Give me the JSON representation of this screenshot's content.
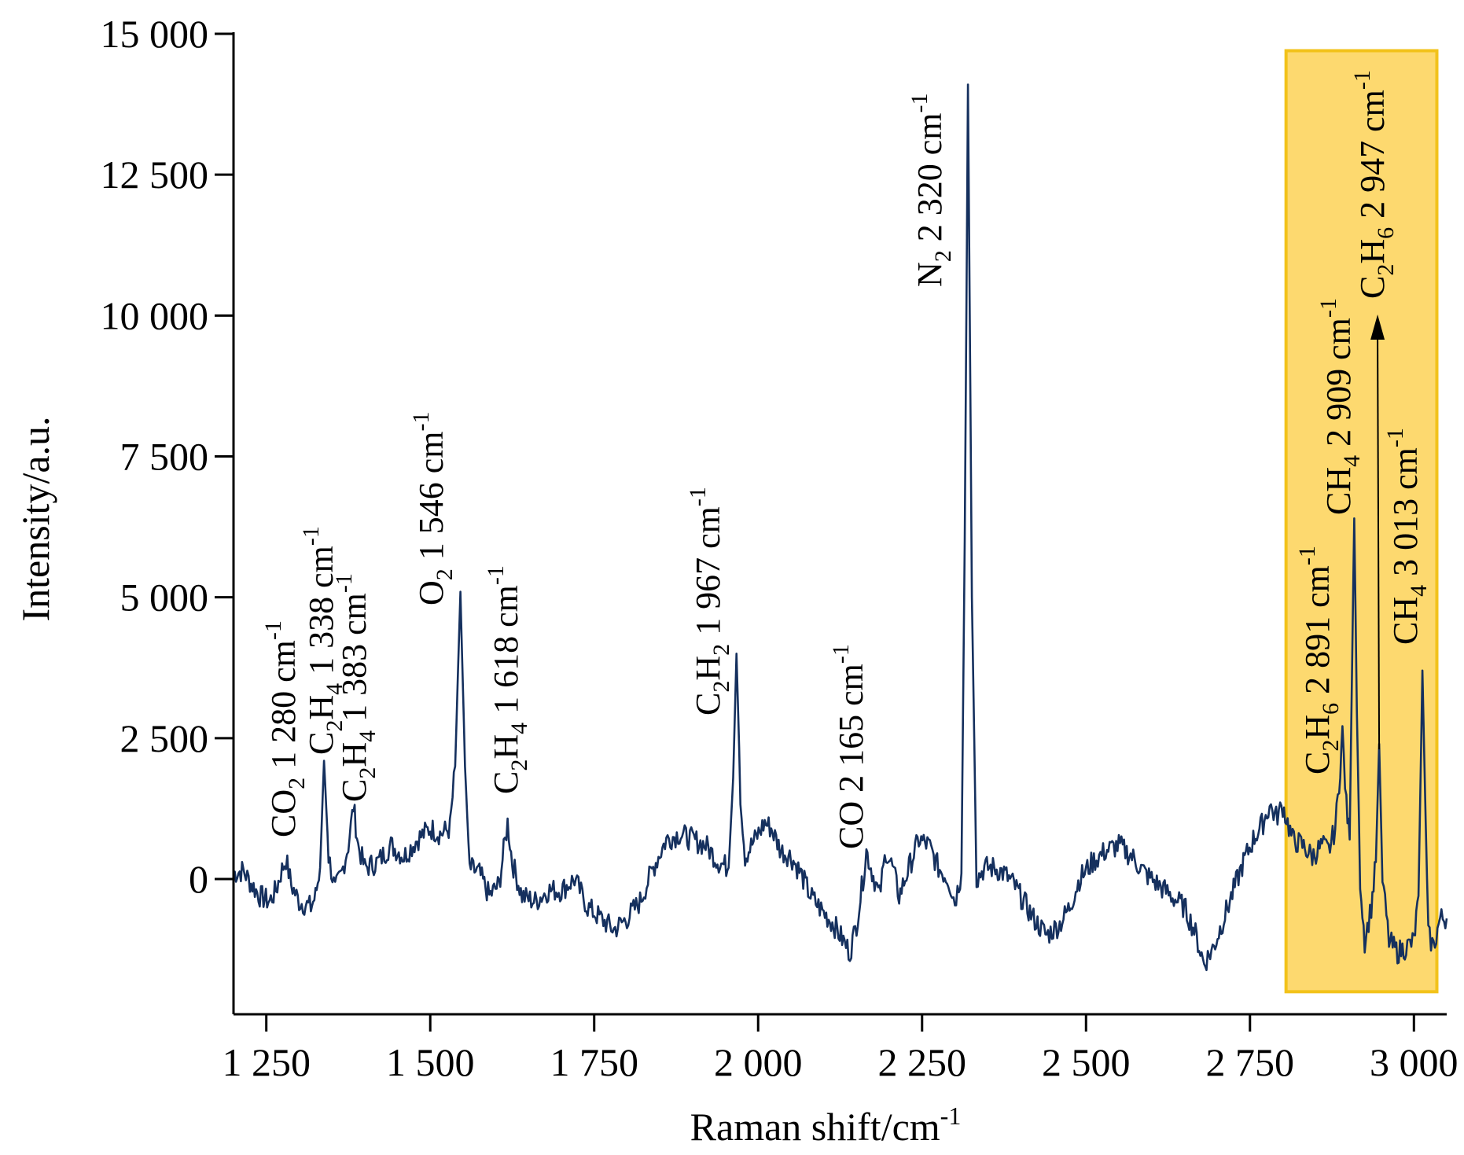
{
  "chart_data": {
    "type": "line",
    "title": "",
    "xlabel": "Raman shift/cm",
    "xlabel_sup": "-1",
    "ylabel": "Intensity/a.u.",
    "xlim": [
      1200,
      3050
    ],
    "ylim": [
      -2400,
      15000
    ],
    "x_ticks": [
      1250,
      1500,
      1750,
      2000,
      2250,
      2500,
      2750,
      3000
    ],
    "x_tick_labels": [
      "1 250",
      "1 500",
      "1 750",
      "2 000",
      "2 250",
      "2 500",
      "2 750",
      "3 000"
    ],
    "y_ticks": [
      0,
      2500,
      5000,
      7500,
      10000,
      12500,
      15000
    ],
    "y_tick_labels": [
      "0",
      "2 500",
      "5 000",
      "7 500",
      "10 000",
      "12 500",
      "15 000"
    ],
    "grid": false,
    "line_color": "#15305e",
    "highlight": {
      "x_range": [
        2805,
        3035
      ],
      "y_range": [
        -2000,
        14700
      ],
      "fill": "#fdd663",
      "stroke": "#f2c21a"
    },
    "series": [
      {
        "values_from": "points",
        "points": [
          [
            1200,
            100
          ],
          [
            1215,
            150
          ],
          [
            1225,
            -50
          ],
          [
            1240,
            -300
          ],
          [
            1255,
            -400
          ],
          [
            1265,
            -200
          ],
          [
            1272,
            100
          ],
          [
            1280,
            350
          ],
          [
            1288,
            -100
          ],
          [
            1300,
            -400
          ],
          [
            1318,
            -500
          ],
          [
            1325,
            -300
          ],
          [
            1332,
            200
          ],
          [
            1338,
            2100
          ],
          [
            1345,
            400
          ],
          [
            1355,
            -200
          ],
          [
            1365,
            100
          ],
          [
            1375,
            600
          ],
          [
            1383,
            1300
          ],
          [
            1390,
            600
          ],
          [
            1400,
            200
          ],
          [
            1420,
            300
          ],
          [
            1440,
            600
          ],
          [
            1460,
            400
          ],
          [
            1480,
            700
          ],
          [
            1500,
            900
          ],
          [
            1515,
            800
          ],
          [
            1530,
            900
          ],
          [
            1538,
            2000
          ],
          [
            1546,
            5100
          ],
          [
            1553,
            2000
          ],
          [
            1560,
            200
          ],
          [
            1575,
            100
          ],
          [
            1590,
            -300
          ],
          [
            1605,
            -100
          ],
          [
            1612,
            500
          ],
          [
            1618,
            1000
          ],
          [
            1625,
            300
          ],
          [
            1640,
            -300
          ],
          [
            1660,
            -400
          ],
          [
            1680,
            -200
          ],
          [
            1700,
            -200
          ],
          [
            1720,
            0
          ],
          [
            1740,
            -500
          ],
          [
            1760,
            -700
          ],
          [
            1780,
            -900
          ],
          [
            1800,
            -700
          ],
          [
            1820,
            -400
          ],
          [
            1840,
            200
          ],
          [
            1860,
            700
          ],
          [
            1880,
            800
          ],
          [
            1900,
            700
          ],
          [
            1920,
            600
          ],
          [
            1940,
            300
          ],
          [
            1955,
            200
          ],
          [
            1962,
            1800
          ],
          [
            1967,
            4000
          ],
          [
            1973,
            1500
          ],
          [
            1980,
            400
          ],
          [
            1995,
            700
          ],
          [
            2010,
            1000
          ],
          [
            2020,
            900
          ],
          [
            2035,
            500
          ],
          [
            2050,
            400
          ],
          [
            2065,
            100
          ],
          [
            2080,
            -300
          ],
          [
            2100,
            -600
          ],
          [
            2115,
            -800
          ],
          [
            2130,
            -1100
          ],
          [
            2140,
            -1300
          ],
          [
            2150,
            -800
          ],
          [
            2160,
            0
          ],
          [
            2165,
            500
          ],
          [
            2172,
            200
          ],
          [
            2185,
            -300
          ],
          [
            2195,
            500
          ],
          [
            2205,
            200
          ],
          [
            2215,
            -300
          ],
          [
            2230,
            200
          ],
          [
            2245,
            700
          ],
          [
            2260,
            600
          ],
          [
            2275,
            200
          ],
          [
            2290,
            0
          ],
          [
            2300,
            -400
          ],
          [
            2310,
            100
          ],
          [
            2315,
            6000
          ],
          [
            2320,
            14100
          ],
          [
            2326,
            5000
          ],
          [
            2333,
            0
          ],
          [
            2345,
            200
          ],
          [
            2360,
            200
          ],
          [
            2375,
            100
          ],
          [
            2390,
            -100
          ],
          [
            2405,
            -400
          ],
          [
            2420,
            -700
          ],
          [
            2440,
            -1000
          ],
          [
            2460,
            -800
          ],
          [
            2475,
            -500
          ],
          [
            2490,
            0
          ],
          [
            2510,
            300
          ],
          [
            2530,
            500
          ],
          [
            2550,
            600
          ],
          [
            2570,
            400
          ],
          [
            2590,
            100
          ],
          [
            2610,
            -100
          ],
          [
            2630,
            -300
          ],
          [
            2650,
            -500
          ],
          [
            2665,
            -900
          ],
          [
            2680,
            -1500
          ],
          [
            2695,
            -1200
          ],
          [
            2710,
            -700
          ],
          [
            2725,
            -200
          ],
          [
            2740,
            300
          ],
          [
            2755,
            700
          ],
          [
            2770,
            1000
          ],
          [
            2780,
            1300
          ],
          [
            2790,
            1100
          ],
          [
            2800,
            1300
          ],
          [
            2815,
            700
          ],
          [
            2830,
            600
          ],
          [
            2845,
            400
          ],
          [
            2860,
            600
          ],
          [
            2870,
            500
          ],
          [
            2880,
            900
          ],
          [
            2886,
            1700
          ],
          [
            2891,
            2600
          ],
          [
            2897,
            1300
          ],
          [
            2902,
            700
          ],
          [
            2906,
            4000
          ],
          [
            2909,
            6400
          ],
          [
            2913,
            3000
          ],
          [
            2918,
            0
          ],
          [
            2925,
            -1100
          ],
          [
            2935,
            -500
          ],
          [
            2942,
            300
          ],
          [
            2947,
            2400
          ],
          [
            2952,
            0
          ],
          [
            2962,
            -1100
          ],
          [
            2975,
            -1300
          ],
          [
            2990,
            -1200
          ],
          [
            3000,
            -1100
          ],
          [
            3007,
            -300
          ],
          [
            3013,
            3700
          ],
          [
            3018,
            1000
          ],
          [
            3022,
            -1000
          ],
          [
            3030,
            -1200
          ],
          [
            3040,
            -700
          ],
          [
            3050,
            -700
          ]
        ]
      }
    ],
    "annotations": [
      {
        "x": 1280,
        "species": "CO",
        "sub": "2",
        "rest": " 1 280 cm",
        "sup": "-1"
      },
      {
        "x": 1338,
        "species": "C",
        "sub": "2",
        "species2": "H",
        "sub2": "4",
        "rest": " 1 338 cm",
        "sup": "-1"
      },
      {
        "x": 1383,
        "species": "C",
        "sub": "2",
        "species2": "H",
        "sub2": "4",
        "rest": "  1 383 cm",
        "sup": "-1"
      },
      {
        "x": 1546,
        "species": "O",
        "sub": "2",
        "rest": " 1 546 cm",
        "sup": "-1"
      },
      {
        "x": 1618,
        "species": "C",
        "sub": "2",
        "species2": "H",
        "sub2": "4",
        "rest": " 1 618 cm",
        "sup": "-1"
      },
      {
        "x": 1967,
        "species": "C",
        "sub": "2",
        "species2": "H",
        "sub2": "2",
        "rest": "  1 967 cm",
        "sup": "-1"
      },
      {
        "x": 2165,
        "species": "CO 2 165 cm",
        "sub": "",
        "rest": "",
        "sup": "-1"
      },
      {
        "x": 2320,
        "species": "N",
        "sub": "2",
        "rest": " 2 320 cm",
        "sup": "-1"
      },
      {
        "x": 2891,
        "species": "C",
        "sub": "2",
        "species2": "H",
        "sub2": "6",
        "rest": " 2 891 cm",
        "sup": "-1"
      },
      {
        "x": 2909,
        "species": "CH",
        "sub": "4",
        "rest": " 2 909 cm",
        "sup": "-1"
      },
      {
        "x": 2947,
        "species": "C",
        "sub": "2",
        "species2": "H",
        "sub2": "6",
        "rest": " 2 947 cm",
        "sup": "-1"
      },
      {
        "x": 3013,
        "species": "CH",
        "sub": "4",
        "rest": " 3 013 cm",
        "sup": "-1"
      }
    ]
  }
}
